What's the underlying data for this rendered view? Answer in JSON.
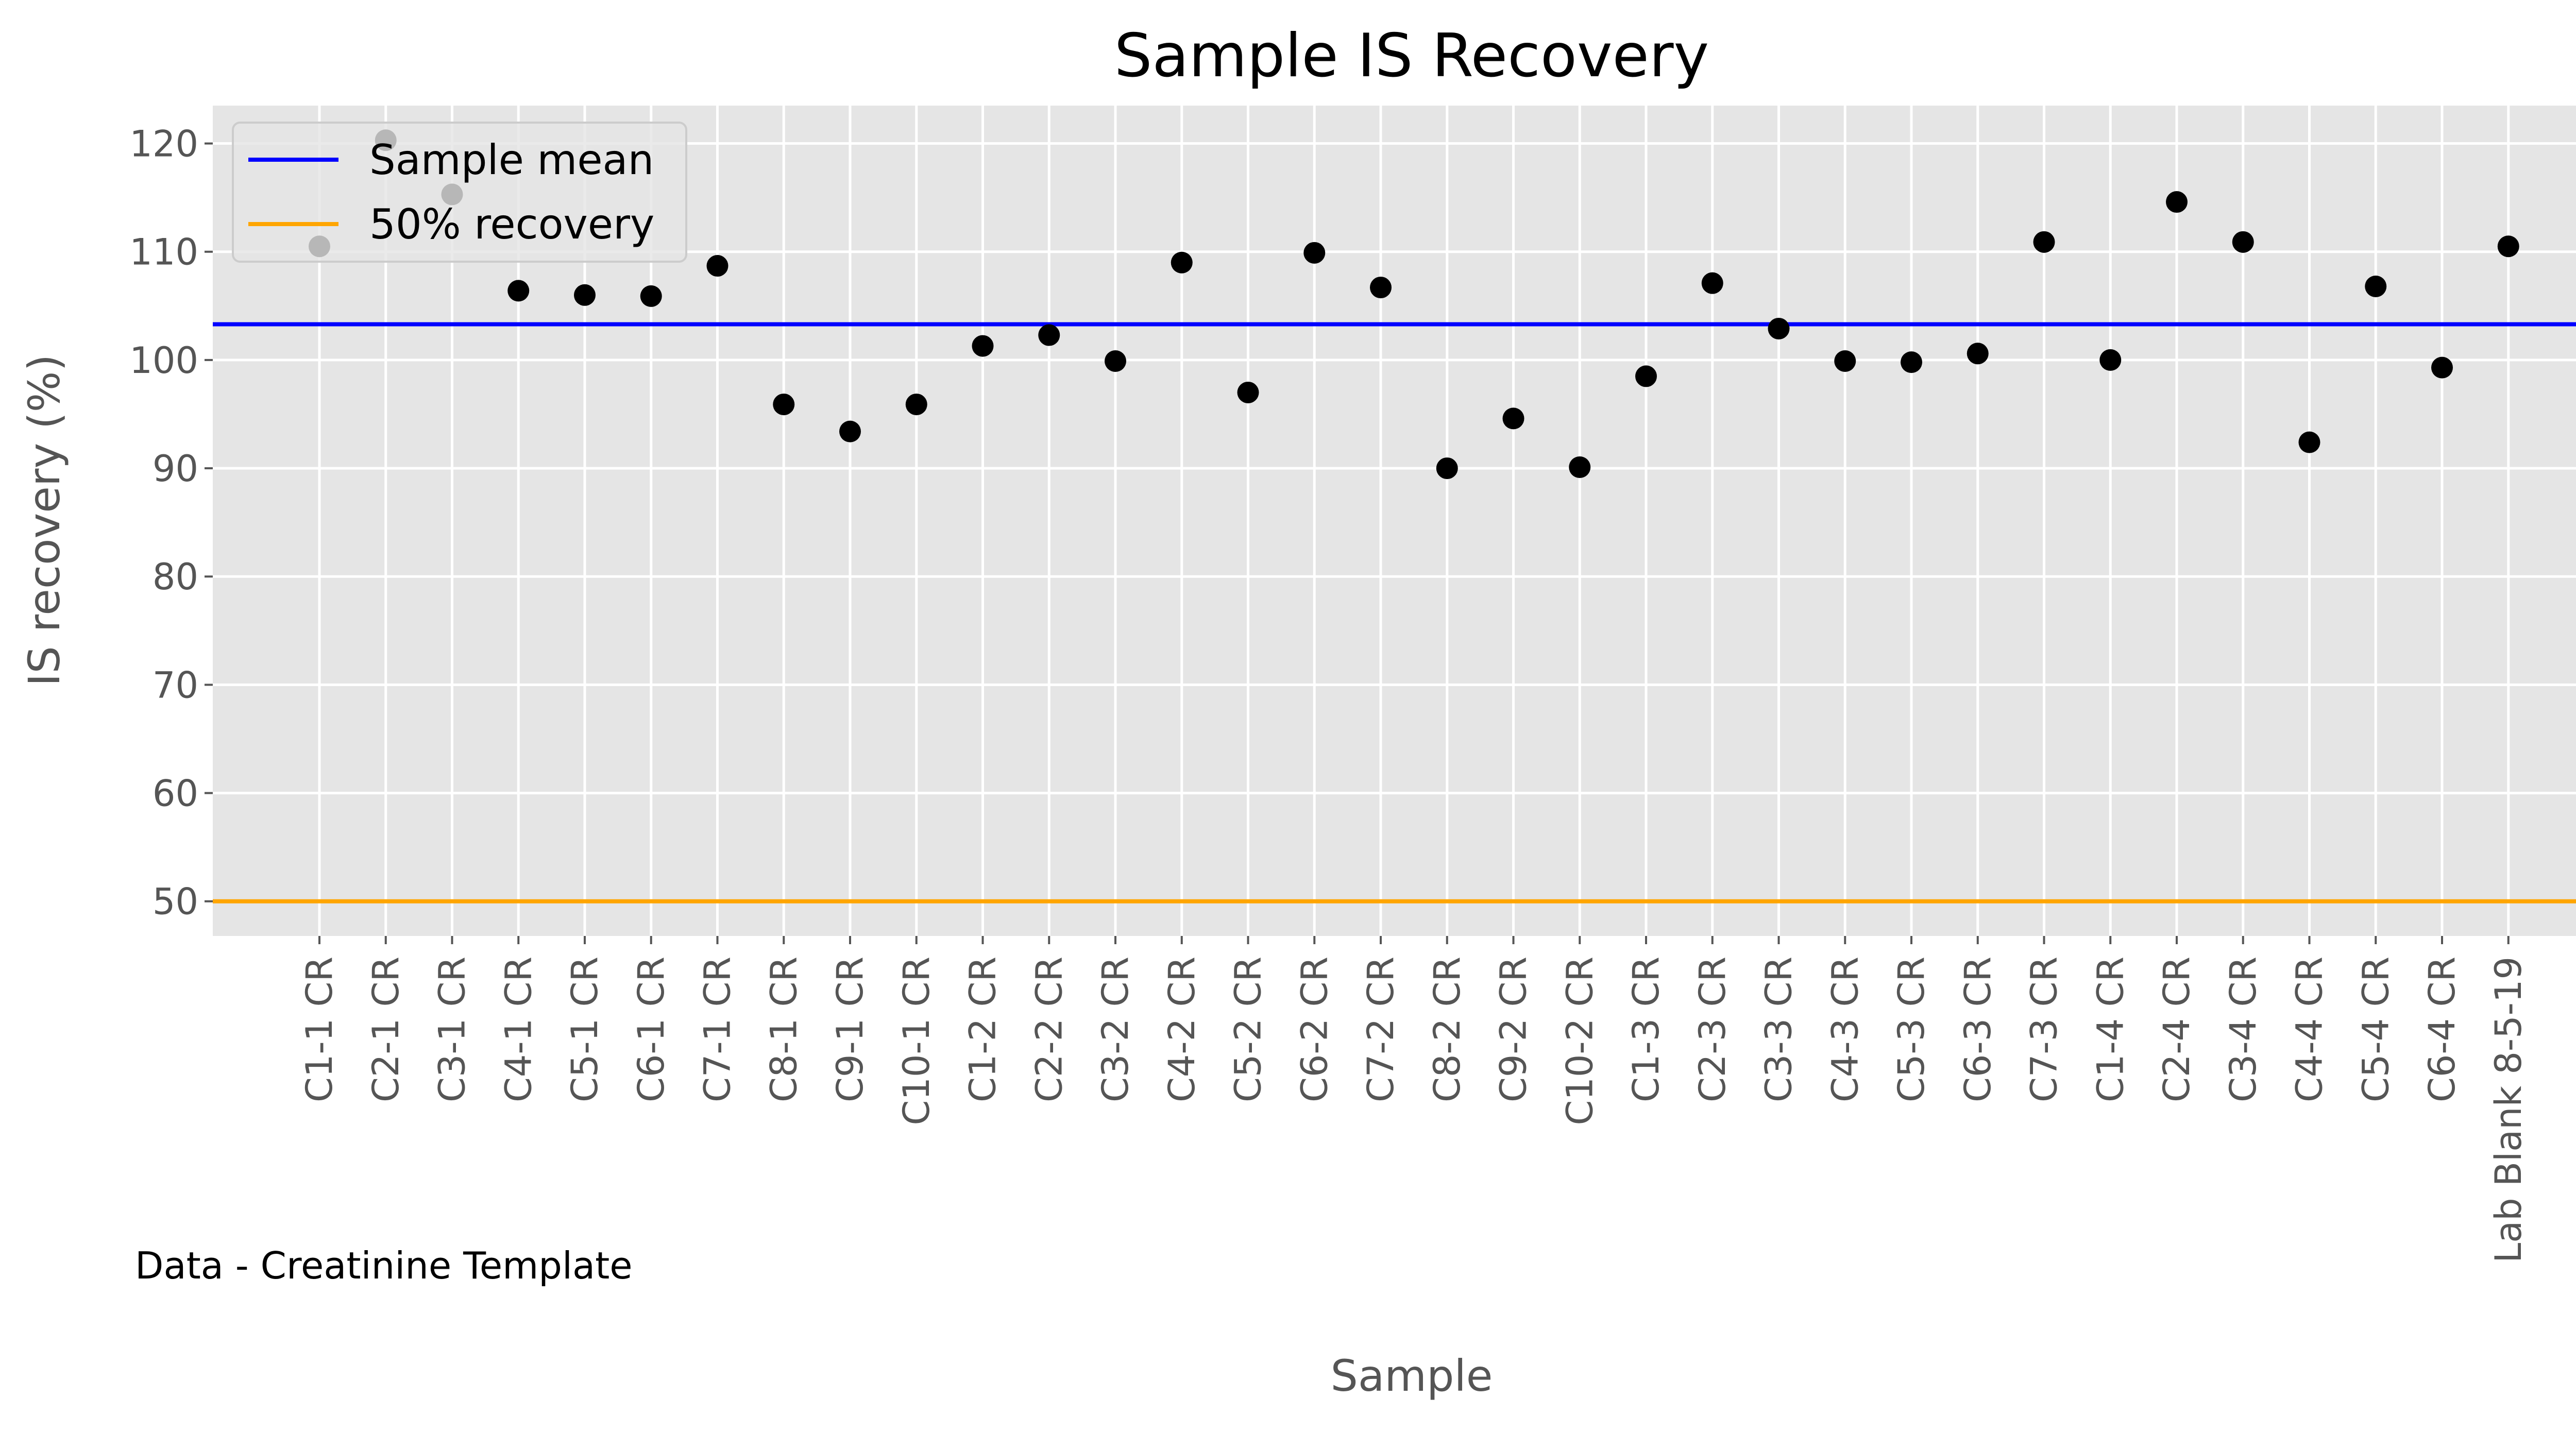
{
  "chart_data": {
    "type": "scatter",
    "title": "Sample IS Recovery",
    "xlabel": "Sample",
    "ylabel": "IS recovery (%)",
    "footnote": "Data - Creatinine Template",
    "ylim": [
      46.8,
      123.5
    ],
    "yticks": [
      50,
      60,
      70,
      80,
      90,
      100,
      110,
      120
    ],
    "grid": true,
    "legend_position": "top-left",
    "colors": {
      "background": "#e5e5e5",
      "grid": "#ffffff",
      "points": "#000000",
      "mean_line": "#0000ff",
      "threshold_line": "#ffa500",
      "legend_bg": "#e5e5e5",
      "legend_border": "#cccccc"
    },
    "categories": [
      "C1-1 CR",
      "C2-1 CR",
      "C3-1 CR",
      "C4-1 CR",
      "C5-1 CR",
      "C6-1 CR",
      "C7-1 CR",
      "C8-1 CR",
      "C9-1 CR",
      "C10-1 CR",
      "C1-2 CR",
      "C2-2 CR",
      "C3-2 CR",
      "C4-2 CR",
      "C5-2 CR",
      "C6-2 CR",
      "C7-2 CR",
      "C8-2 CR",
      "C9-2 CR",
      "C10-2 CR",
      "C1-3 CR",
      "C2-3 CR",
      "C3-3 CR",
      "C4-3 CR",
      "C5-3 CR",
      "C6-3 CR",
      "C7-3 CR",
      "C1-4 CR",
      "C2-4 CR",
      "C3-4 CR",
      "C4-4 CR",
      "C5-4 CR",
      "C6-4 CR",
      "Lab Blank 8-5-19"
    ],
    "values": [
      110.5,
      120.3,
      115.3,
      106.4,
      106.0,
      105.9,
      108.7,
      95.9,
      93.4,
      95.9,
      101.3,
      102.3,
      99.9,
      109.0,
      97.0,
      109.9,
      106.7,
      90.0,
      94.6,
      90.1,
      98.5,
      107.1,
      102.9,
      99.9,
      99.8,
      100.6,
      110.9,
      100.0,
      114.6,
      110.9,
      92.4,
      106.8,
      99.3,
      110.5
    ],
    "series": [
      {
        "name": "Sample mean",
        "type": "hline",
        "value": 103.3
      },
      {
        "name": "50% recovery",
        "type": "hline",
        "value": 50
      }
    ]
  }
}
